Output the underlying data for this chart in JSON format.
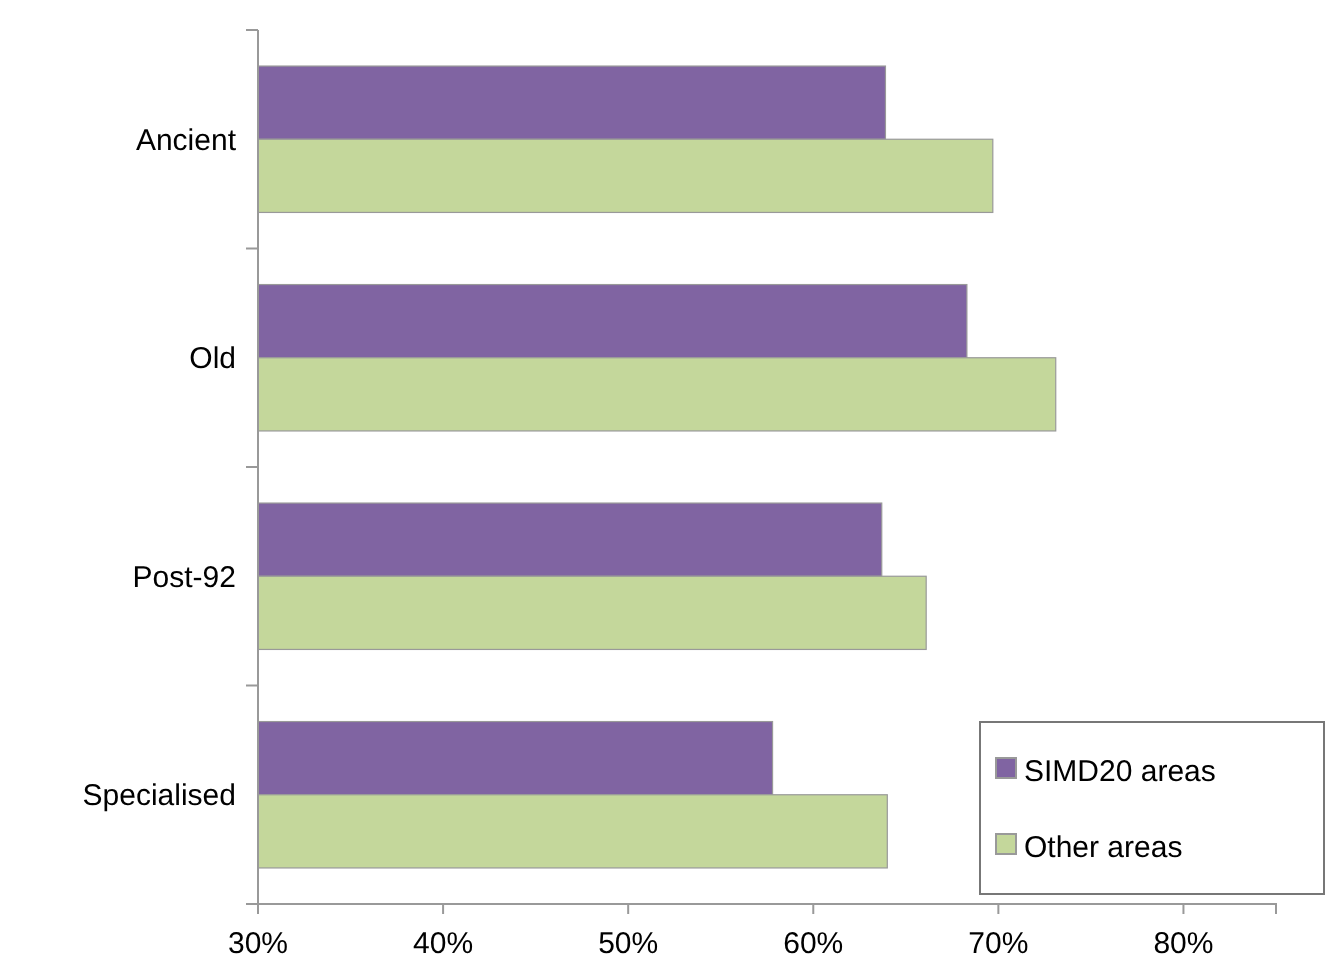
{
  "chart_data": {
    "type": "bar",
    "orientation": "horizontal",
    "categories": [
      "Ancient",
      "Old",
      "Post-92",
      "Specialised"
    ],
    "series": [
      {
        "name": "SIMD20 areas",
        "color": "#8064a2",
        "values": [
          63.9,
          68.3,
          63.7,
          57.8
        ]
      },
      {
        "name": "Other areas",
        "color": "#c4d79b",
        "values": [
          69.7,
          73.1,
          66.1,
          64.0
        ]
      }
    ],
    "xlim": [
      30,
      85
    ],
    "xticks": [
      {
        "value": 30,
        "label": "30%"
      },
      {
        "value": 40,
        "label": "40%"
      },
      {
        "value": 50,
        "label": "50%"
      },
      {
        "value": 60,
        "label": "60%"
      },
      {
        "value": 70,
        "label": "70%"
      },
      {
        "value": 80,
        "label": "80%"
      }
    ],
    "legend": "bottom right",
    "grid": false
  }
}
